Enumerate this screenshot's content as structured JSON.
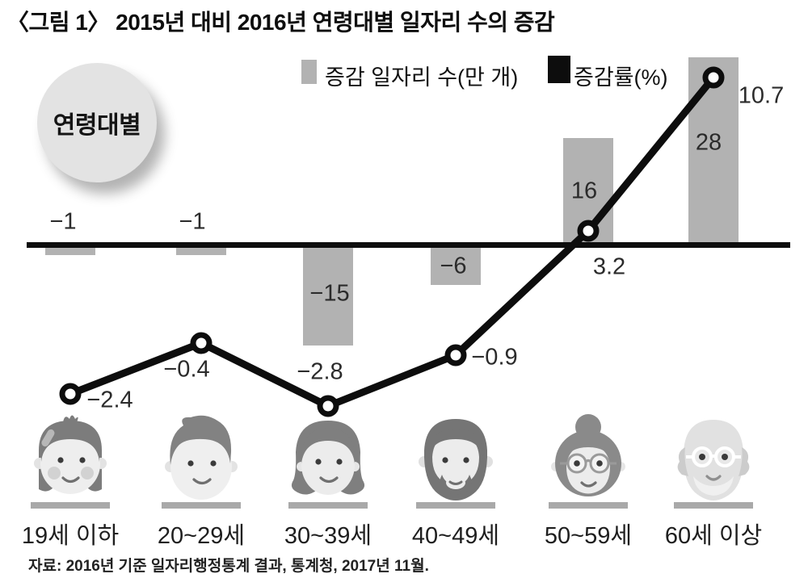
{
  "title": "〈그림 1〉 2015년 대비 2016년 연령대별 일자리 수의 증감",
  "badge_label": "연령대별",
  "legend": {
    "bar_series_label": "증감 일자리 수(만 개)",
    "line_series_label": "증감률(%)"
  },
  "source": "자료: 2016년 기준 일자리행정통계 결과, 통계청, 2017년 11월.",
  "colors": {
    "bar": "#b2b2b2",
    "line": "#0d0d0d",
    "badge_bg": "#e3e3e3",
    "axis": "#0d0d0d"
  },
  "chart_data": {
    "type": "bar+line combo",
    "title": "2015년 대비 2016년 연령대별 일자리 수의 증감",
    "categories": [
      "19세 이하",
      "20~29세",
      "30~39세",
      "40~49세",
      "50~59세",
      "60세 이상"
    ],
    "series": [
      {
        "name": "증감 일자리 수(만 개)",
        "type": "bar",
        "values": [
          -1,
          -1,
          -15,
          -6,
          16,
          28
        ],
        "labels": [
          "−1",
          "−1",
          "−15",
          "−6",
          "16",
          "28"
        ]
      },
      {
        "name": "증감률(%)",
        "type": "line",
        "values": [
          -2.4,
          -0.4,
          -2.8,
          -0.9,
          3.2,
          10.7
        ],
        "labels": [
          "−2.4",
          "−0.4",
          "−2.8",
          "−0.9",
          "3.2",
          "10.7"
        ]
      }
    ],
    "axis": {
      "zero_line": true,
      "gridlines": false,
      "y_ticks_visible": false
    },
    "legend_position": "top"
  }
}
